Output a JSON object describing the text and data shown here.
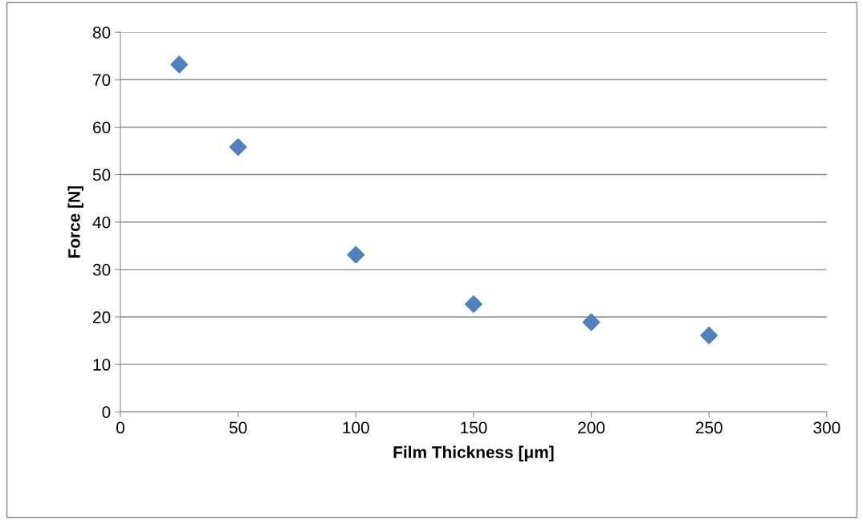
{
  "chart_data": {
    "type": "scatter",
    "xlabel": "Film Thickness [μm]",
    "ylabel": "Force [N]",
    "x": [
      25,
      50,
      100,
      150,
      200,
      250
    ],
    "series": [
      {
        "color": "#4f81bd",
        "values": [
          73.2,
          55.8,
          33.1,
          22.7,
          18.9,
          16.1
        ]
      }
    ],
    "xlim": [
      0,
      300
    ],
    "xticks": [
      0,
      50,
      100,
      150,
      200,
      250,
      300
    ],
    "ylim": [
      0,
      80
    ],
    "yticks": [
      0,
      10,
      20,
      30,
      40,
      50,
      60,
      70,
      80
    ],
    "grid": "y",
    "marker": "diamond"
  }
}
